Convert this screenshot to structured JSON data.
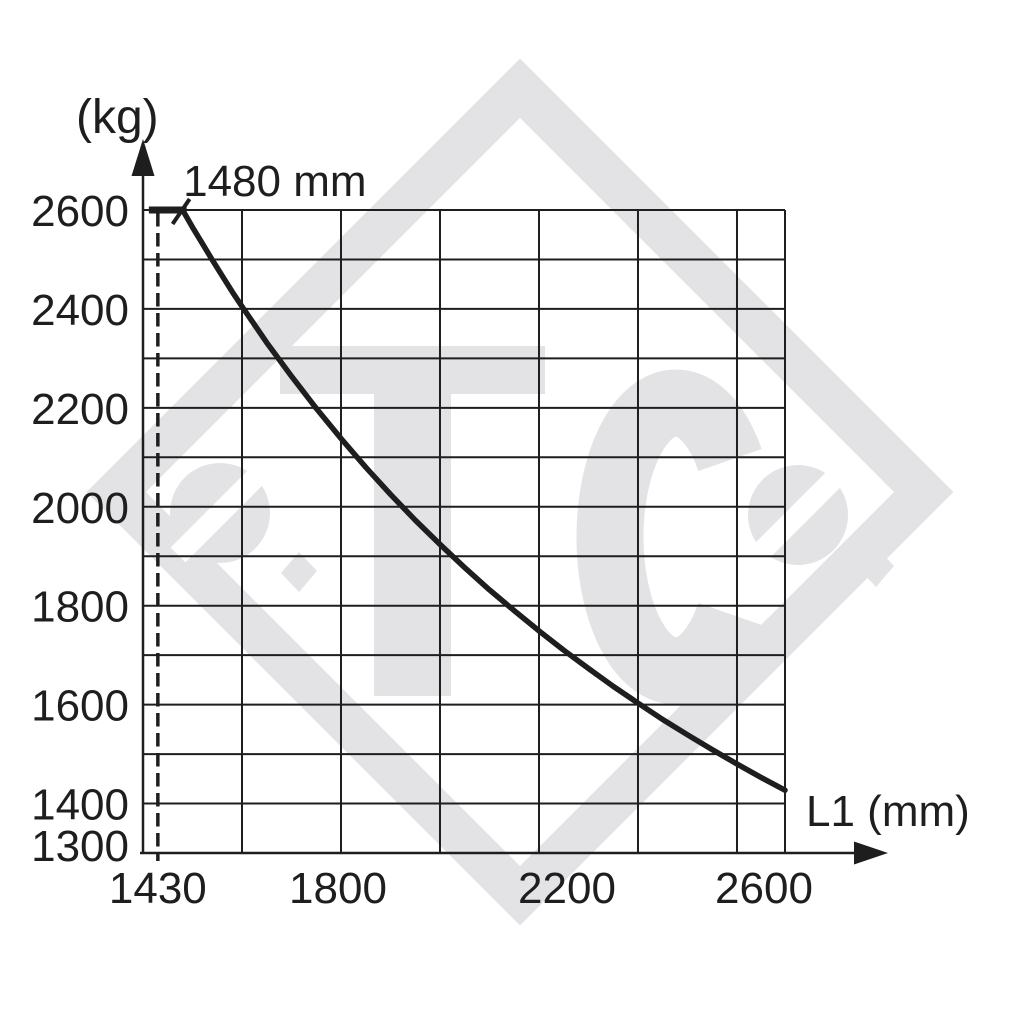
{
  "watermark": {
    "text": "TC"
  },
  "chart_data": {
    "type": "line",
    "title": "",
    "xlabel": "L1 (mm)",
    "ylabel": "(kg)",
    "xlim": [
      1400,
      2697
    ],
    "ylim": [
      1300,
      2600
    ],
    "x_grid_step": 200,
    "y_grid_step": 100,
    "grid": true,
    "legend": "none",
    "x_tick_labels": [
      "1430",
      "1800",
      "2200",
      "2600"
    ],
    "y_tick_labels": [
      "2600",
      "2400",
      "2200",
      "2000",
      "1800",
      "1600",
      "1400",
      "1300"
    ],
    "annotation": {
      "text": "1480 mm",
      "at_x": 1480,
      "at_y": 2600
    },
    "dashed_guide_x": 1430,
    "curve_start": {
      "x": 1480,
      "y": 2600
    },
    "plateau": {
      "x1": 1430,
      "x2": 1480,
      "y": 2600
    },
    "series": [
      {
        "name": "axle-load-capacity-curve",
        "points": [
          [
            1480,
            2600
          ],
          [
            1500,
            2565
          ],
          [
            1520,
            2532
          ],
          [
            1540,
            2499
          ],
          [
            1560,
            2467
          ],
          [
            1580,
            2435
          ],
          [
            1600,
            2405
          ],
          [
            1650,
            2332
          ],
          [
            1700,
            2264
          ],
          [
            1750,
            2199
          ],
          [
            1800,
            2138
          ],
          [
            1850,
            2080
          ],
          [
            1900,
            2025
          ],
          [
            1950,
            1973
          ],
          [
            2000,
            1924
          ],
          [
            2050,
            1877
          ],
          [
            2100,
            1832
          ],
          [
            2150,
            1790
          ],
          [
            2200,
            1749
          ],
          [
            2250,
            1710
          ],
          [
            2300,
            1673
          ],
          [
            2350,
            1637
          ],
          [
            2400,
            1603
          ],
          [
            2450,
            1570
          ],
          [
            2500,
            1539
          ],
          [
            2550,
            1509
          ],
          [
            2600,
            1480
          ],
          [
            2650,
            1452
          ],
          [
            2697,
            1427
          ]
        ]
      }
    ],
    "ink_color": "#1e1e1e",
    "watermark_color": "#e3e3e6"
  }
}
